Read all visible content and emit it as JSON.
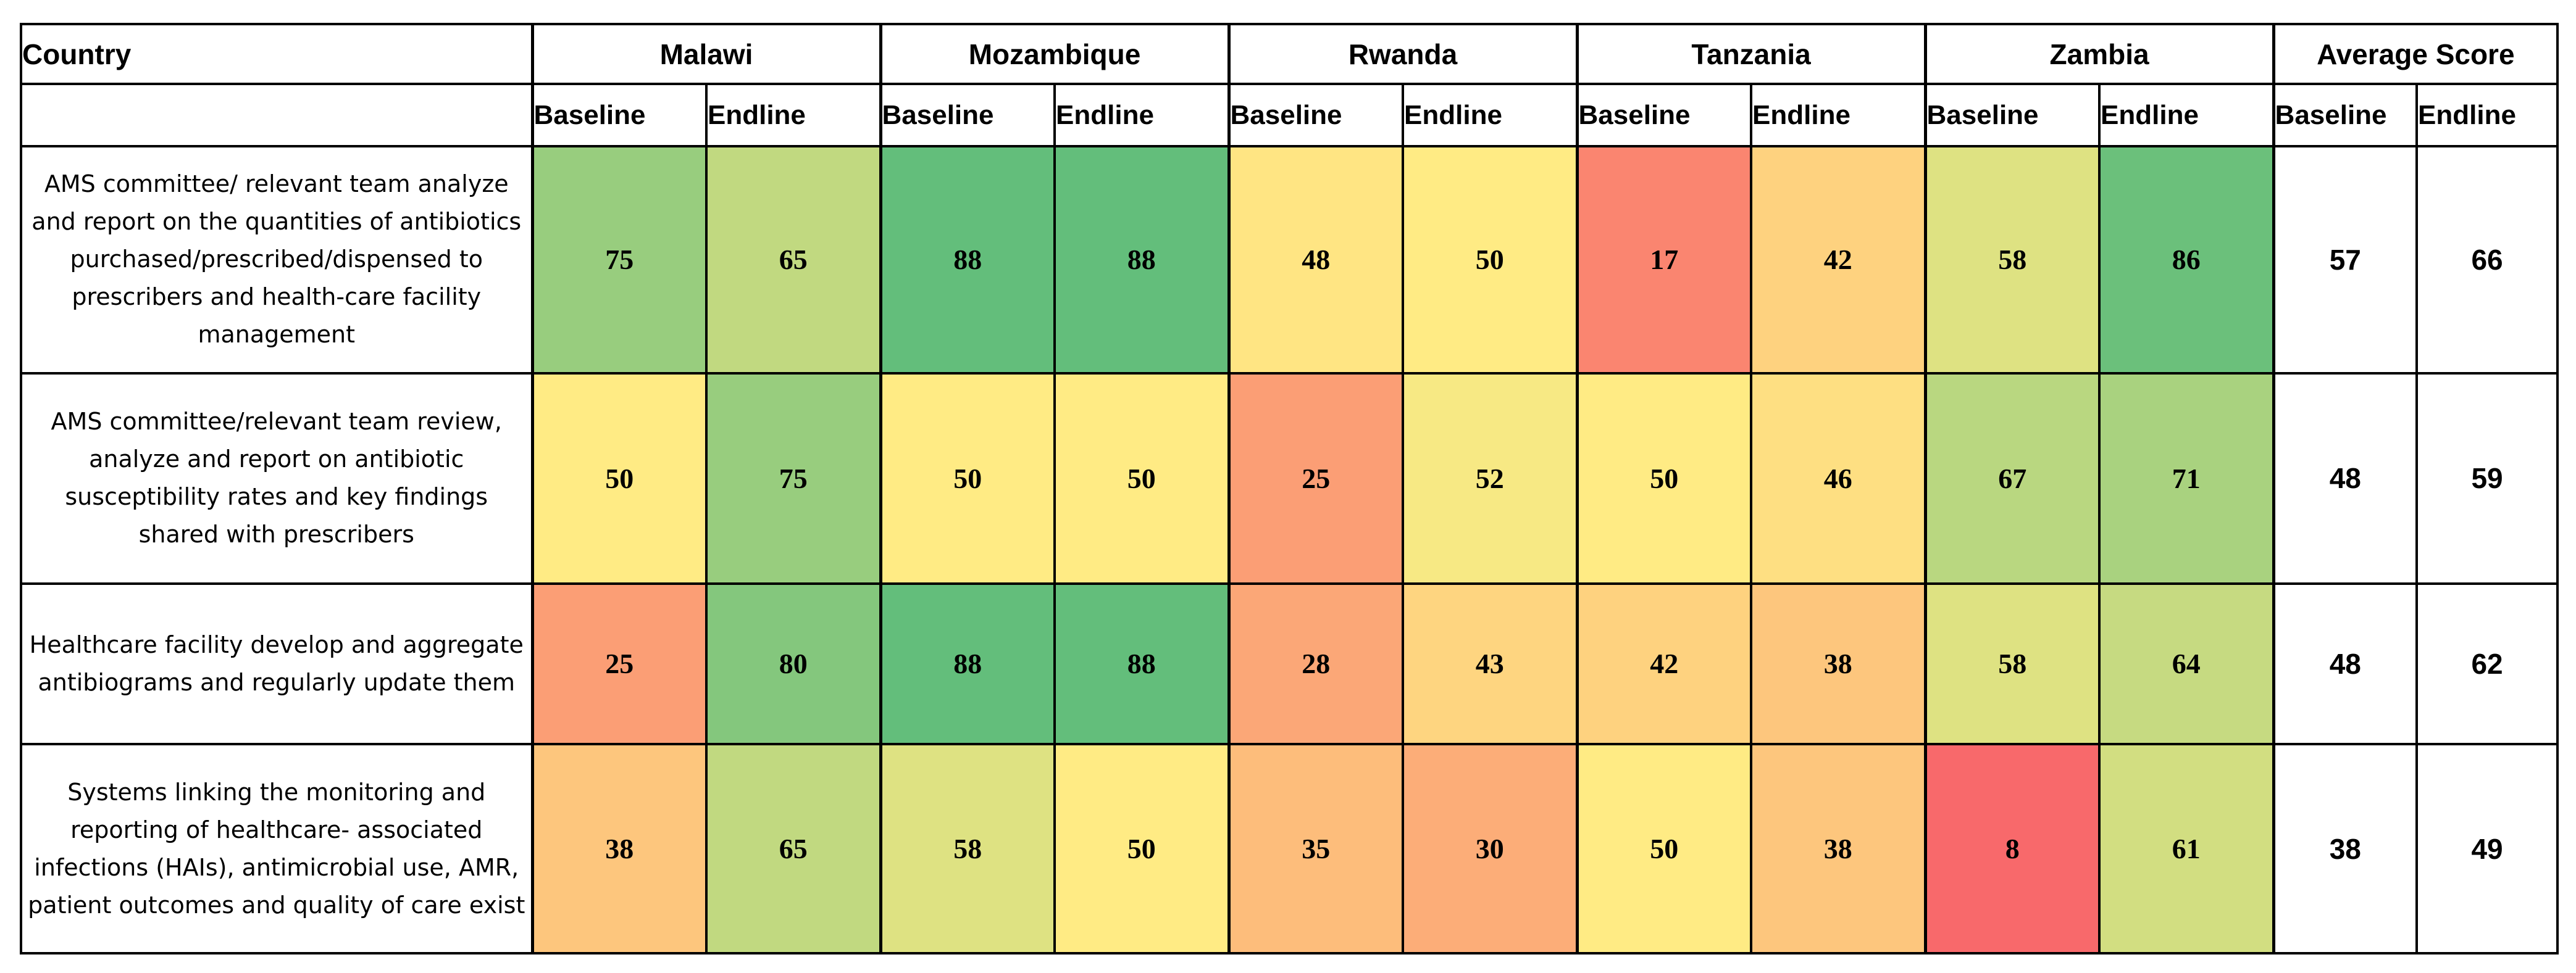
{
  "chart_data": {
    "type": "heatmap",
    "corner_label": "Country",
    "countries": [
      "Malawi",
      "Mozambique",
      "Rwanda",
      "Tanzania",
      "Zambia"
    ],
    "average_label": "Average Score",
    "phases": [
      "Baseline",
      "Endline"
    ],
    "rows": [
      {
        "label": "AMS committee/ relevant team analyze and report on the quantities of antibiotics purchased/prescribed/dispensed to prescribers and health-care facility management",
        "values": [
          75,
          65,
          88,
          88,
          48,
          50,
          17,
          42,
          58,
          86
        ],
        "average": [
          57,
          66
        ]
      },
      {
        "label": "AMS committee/relevant team review, analyze and report on antibiotic susceptibility rates and key findings shared with prescribers",
        "values": [
          50,
          75,
          50,
          50,
          25,
          52,
          50,
          46,
          67,
          71
        ],
        "average": [
          48,
          59
        ]
      },
      {
        "label": "Healthcare facility develop and aggregate antibiograms and regularly update them",
        "values": [
          25,
          80,
          88,
          88,
          28,
          43,
          42,
          38,
          58,
          64
        ],
        "average": [
          48,
          62
        ]
      },
      {
        "label": "Systems linking the monitoring and reporting of healthcare- associated infections (HAIs), antimicrobial use, AMR, patient outcomes and quality of care exist",
        "values": [
          38,
          65,
          58,
          50,
          35,
          30,
          50,
          38,
          8,
          61
        ],
        "average": [
          38,
          49
        ]
      }
    ],
    "color_scale": {
      "min_color": "#f8696b",
      "mid_color": "#ffeb84",
      "max_color": "#63be7b",
      "min": 8,
      "mid": 50,
      "max": 88
    },
    "average_background": "#ffffff"
  }
}
